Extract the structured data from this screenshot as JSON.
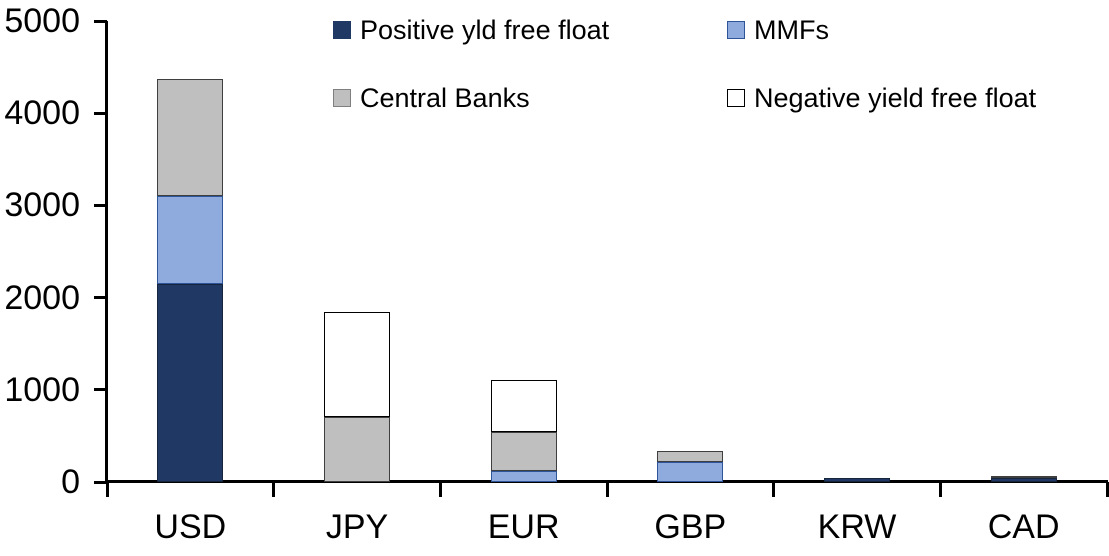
{
  "chart_data": {
    "type": "bar",
    "stacked": true,
    "title": "",
    "xlabel": "",
    "ylabel": "",
    "categories": [
      "USD",
      "JPY",
      "EUR",
      "GBP",
      "KRW",
      "CAD"
    ],
    "series": [
      {
        "name": "Positive yld free float",
        "color": "#1f3864",
        "border": "#16263f",
        "values": [
          2150,
          0,
          0,
          0,
          45,
          40
        ]
      },
      {
        "name": "MMFs",
        "color": "#8faadc",
        "border": "#2e5597",
        "values": [
          950,
          0,
          120,
          220,
          0,
          0
        ]
      },
      {
        "name": "Central Banks",
        "color": "#bfbfbf",
        "border": "#3f3f3f",
        "values": [
          1275,
          700,
          420,
          115,
          0,
          25
        ]
      },
      {
        "name": "Negative yield free float",
        "color": "#ffffff",
        "border": "#000000",
        "values": [
          0,
          1140,
          570,
          0,
          0,
          0
        ]
      }
    ],
    "totals": {
      "USD": 4375,
      "JPY": 1840,
      "EUR": 1110,
      "GBP": 335,
      "KRW": 45,
      "CAD": 65
    },
    "y_axis": {
      "min": 0,
      "max": 5000,
      "tick_step": 1000,
      "ticks": [
        0,
        1000,
        2000,
        3000,
        4000,
        5000
      ]
    },
    "legend_position": "top",
    "grid": false
  },
  "colors": {
    "background": "#ffffff",
    "axis": "#000000",
    "text": "#000000",
    "navy": "#1f3864",
    "light_blue": "#8faadc",
    "gray": "#bfbfbf",
    "white_segment": "#ffffff"
  }
}
